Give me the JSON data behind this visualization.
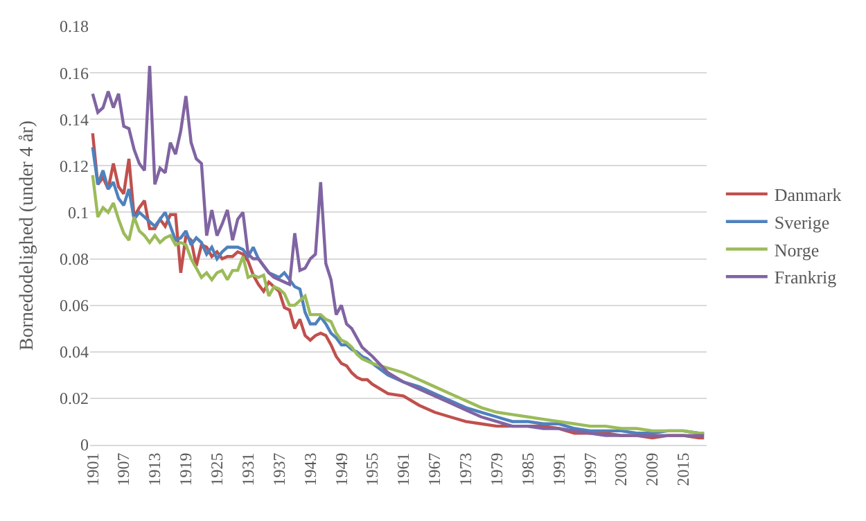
{
  "chart_data": {
    "type": "line",
    "ylabel": "Bornedodelighed (under 4 år)",
    "x": [
      1901,
      1902,
      1903,
      1904,
      1905,
      1906,
      1907,
      1908,
      1909,
      1910,
      1911,
      1912,
      1913,
      1914,
      1915,
      1916,
      1917,
      1918,
      1919,
      1920,
      1921,
      1922,
      1923,
      1924,
      1925,
      1926,
      1927,
      1928,
      1929,
      1930,
      1931,
      1932,
      1933,
      1934,
      1935,
      1936,
      1937,
      1938,
      1939,
      1940,
      1941,
      1942,
      1943,
      1944,
      1945,
      1946,
      1947,
      1948,
      1949,
      1950,
      1951,
      1952,
      1953,
      1954,
      1955,
      1958,
      1961,
      1964,
      1967,
      1970,
      1973,
      1976,
      1979,
      1982,
      1985,
      1988,
      1991,
      1994,
      1997,
      2000,
      2003,
      2006,
      2009,
      2012,
      2015,
      2018,
      2019
    ],
    "series": [
      {
        "name": "Danmark",
        "color": "#c0504d",
        "values": [
          0.134,
          0.112,
          0.115,
          0.11,
          0.121,
          0.111,
          0.108,
          0.123,
          0.098,
          0.102,
          0.105,
          0.093,
          0.093,
          0.097,
          0.094,
          0.099,
          0.099,
          0.074,
          0.09,
          0.088,
          0.077,
          0.086,
          0.085,
          0.081,
          0.083,
          0.08,
          0.081,
          0.081,
          0.083,
          0.082,
          0.079,
          0.073,
          0.069,
          0.066,
          0.07,
          0.068,
          0.066,
          0.059,
          0.058,
          0.05,
          0.054,
          0.047,
          0.045,
          0.047,
          0.048,
          0.047,
          0.043,
          0.038,
          0.035,
          0.034,
          0.031,
          0.029,
          0.028,
          0.028,
          0.026,
          0.022,
          0.021,
          0.017,
          0.014,
          0.012,
          0.01,
          0.009,
          0.008,
          0.008,
          0.008,
          0.008,
          0.007,
          0.005,
          0.005,
          0.005,
          0.004,
          0.004,
          0.003,
          0.004,
          0.004,
          0.003,
          0.003
        ]
      },
      {
        "name": "Sverige",
        "color": "#4f81bd",
        "values": [
          0.128,
          0.112,
          0.118,
          0.11,
          0.113,
          0.106,
          0.103,
          0.11,
          0.097,
          0.1,
          0.098,
          0.096,
          0.094,
          0.097,
          0.1,
          0.094,
          0.088,
          0.089,
          0.092,
          0.086,
          0.089,
          0.087,
          0.082,
          0.085,
          0.08,
          0.083,
          0.085,
          0.085,
          0.085,
          0.084,
          0.081,
          0.085,
          0.08,
          0.077,
          0.074,
          0.073,
          0.072,
          0.074,
          0.071,
          0.068,
          0.067,
          0.057,
          0.052,
          0.052,
          0.055,
          0.052,
          0.048,
          0.046,
          0.043,
          0.043,
          0.041,
          0.04,
          0.038,
          0.037,
          0.035,
          0.03,
          0.027,
          0.025,
          0.022,
          0.019,
          0.016,
          0.014,
          0.012,
          0.01,
          0.01,
          0.009,
          0.009,
          0.007,
          0.006,
          0.006,
          0.006,
          0.005,
          0.005,
          0.006,
          0.006,
          0.005,
          0.005
        ]
      },
      {
        "name": "Norge",
        "color": "#9bbb59",
        "values": [
          0.116,
          0.098,
          0.102,
          0.1,
          0.104,
          0.097,
          0.091,
          0.088,
          0.098,
          0.092,
          0.09,
          0.087,
          0.09,
          0.087,
          0.089,
          0.09,
          0.086,
          0.087,
          0.086,
          0.08,
          0.076,
          0.072,
          0.074,
          0.071,
          0.074,
          0.075,
          0.071,
          0.075,
          0.075,
          0.081,
          0.072,
          0.073,
          0.072,
          0.073,
          0.064,
          0.068,
          0.067,
          0.065,
          0.06,
          0.06,
          0.062,
          0.064,
          0.056,
          0.056,
          0.056,
          0.054,
          0.053,
          0.048,
          0.045,
          0.044,
          0.042,
          0.039,
          0.037,
          0.036,
          0.035,
          0.033,
          0.031,
          0.028,
          0.025,
          0.022,
          0.019,
          0.016,
          0.014,
          0.013,
          0.012,
          0.011,
          0.01,
          0.009,
          0.008,
          0.008,
          0.007,
          0.007,
          0.006,
          0.006,
          0.006,
          0.005,
          0.005
        ]
      },
      {
        "name": "Frankrig",
        "color": "#8064a2",
        "values": [
          0.151,
          0.143,
          0.145,
          0.152,
          0.145,
          0.151,
          0.137,
          0.136,
          0.127,
          0.121,
          0.118,
          0.163,
          0.112,
          0.119,
          0.117,
          0.13,
          0.125,
          0.135,
          0.15,
          0.13,
          0.123,
          0.121,
          0.09,
          0.101,
          0.09,
          0.095,
          0.101,
          0.088,
          0.097,
          0.1,
          0.082,
          0.08,
          0.08,
          0.077,
          0.074,
          0.072,
          0.071,
          0.07,
          0.069,
          0.091,
          0.075,
          0.076,
          0.08,
          0.082,
          0.113,
          0.078,
          0.071,
          0.056,
          0.06,
          0.052,
          0.05,
          0.046,
          0.042,
          0.04,
          0.038,
          0.031,
          0.027,
          0.024,
          0.021,
          0.018,
          0.015,
          0.012,
          0.01,
          0.008,
          0.008,
          0.007,
          0.007,
          0.006,
          0.005,
          0.004,
          0.004,
          0.004,
          0.004,
          0.004,
          0.004,
          0.004,
          0.004
        ]
      }
    ],
    "xlim": [
      1900.5,
      2019.5
    ],
    "xticks": [
      1901,
      1907,
      1913,
      1919,
      1925,
      1931,
      1937,
      1943,
      1949,
      1955,
      1961,
      1967,
      1973,
      1979,
      1985,
      1991,
      1997,
      2003,
      2009,
      2015
    ],
    "ylim": [
      0,
      0.18
    ],
    "yticks": [
      0,
      0.02,
      0.04,
      0.06,
      0.08,
      {
        "value": 0.1,
        "label": "0.1"
      },
      0.12,
      0.14,
      0.16,
      0.18
    ],
    "grid": "y",
    "legend": "right",
    "line_style": "solid",
    "marker": "none"
  }
}
